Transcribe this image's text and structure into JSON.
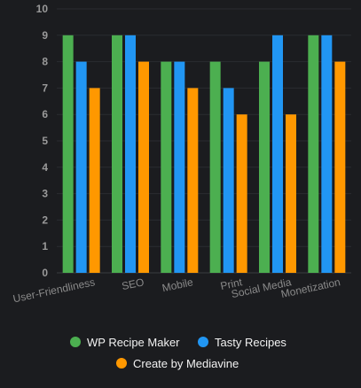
{
  "chart_data": {
    "type": "bar",
    "categories": [
      "User-Friendliness",
      "SEO",
      "Mobile",
      "Print",
      "Social Media",
      "Monetization"
    ],
    "series": [
      {
        "name": "WP Recipe Maker",
        "values": [
          9,
          9,
          8,
          8,
          8,
          9
        ],
        "color": "#4caf50"
      },
      {
        "name": "Tasty Recipes",
        "values": [
          8,
          9,
          8,
          7,
          9,
          9
        ],
        "color": "#2196f3"
      },
      {
        "name": "Create by Mediavine",
        "values": [
          7,
          8,
          7,
          6,
          6,
          8
        ],
        "color": "#ff9800"
      }
    ],
    "ylim": [
      0,
      10
    ],
    "yticks": [
      0,
      1,
      2,
      3,
      4,
      5,
      6,
      7,
      8,
      9,
      10
    ],
    "grid": true,
    "legend_position": "bottom"
  }
}
